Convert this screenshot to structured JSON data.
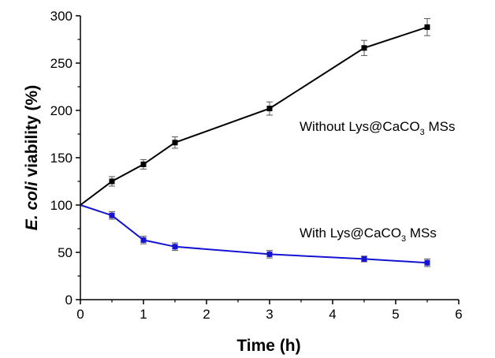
{
  "chart_data": {
    "type": "line",
    "xlabel": "Time (h)",
    "ylabel": {
      "italic_part": "E. coli",
      "rest": " viability (%)"
    },
    "xlim": [
      0,
      6
    ],
    "ylim": [
      0,
      300
    ],
    "x_ticks": [
      "0",
      "1",
      "2",
      "3",
      "4",
      "5",
      "6"
    ],
    "y_ticks": [
      "0",
      "50",
      "100",
      "150",
      "200",
      "250",
      "300"
    ],
    "grid": false,
    "legend": "none",
    "series": [
      {
        "annotation": {
          "pre": "Without Lys@CaCO",
          "sub": "3",
          "post": " MSs"
        },
        "color": "#000000",
        "marker": "square",
        "x": [
          0,
          0.5,
          1,
          1.5,
          3,
          4.5,
          5.5
        ],
        "y": [
          100,
          125,
          143,
          166,
          202,
          266,
          288
        ],
        "err": [
          0,
          5,
          5,
          6,
          7,
          8,
          9
        ]
      },
      {
        "annotation": {
          "pre": "With Lys@CaCO",
          "sub": "3",
          "post": " MSs"
        },
        "color": "#1414d2",
        "marker": "square",
        "x": [
          0,
          0.5,
          1,
          1.5,
          3,
          4.5,
          5.5
        ],
        "y": [
          100,
          89,
          63,
          56,
          48,
          43,
          39
        ],
        "err": [
          0,
          4,
          4,
          4,
          4,
          3,
          4
        ]
      }
    ]
  }
}
